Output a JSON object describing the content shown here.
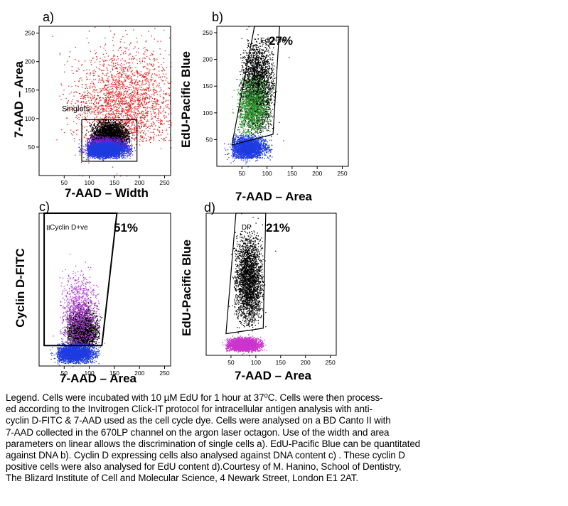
{
  "chart_data": [
    {
      "type": "scatter",
      "panel_label": "a)",
      "xlabel": "7-AAD – Width",
      "ylabel": "7-AAD – Area",
      "xlim": [
        0,
        262
      ],
      "ylim": [
        0,
        262
      ],
      "xticks": [
        50,
        100,
        150,
        200,
        250
      ],
      "yticks": [
        50,
        100,
        150,
        200,
        250
      ],
      "gate": {
        "name": "Singlets",
        "shape": "rectangle",
        "x": [
          85,
          195
        ],
        "y": [
          25,
          98
        ]
      },
      "populations": [
        {
          "color": "#e02020",
          "x_range": [
            40,
            262
          ],
          "y_range": [
            60,
            262
          ],
          "center": [
            170,
            125
          ],
          "density": "high"
        },
        {
          "color": "#000000",
          "x_range": [
            100,
            180
          ],
          "y_range": [
            45,
            100
          ],
          "center": [
            140,
            70
          ],
          "density": "high"
        },
        {
          "color": "#7b1fd6",
          "x_range": [
            95,
            185
          ],
          "y_range": [
            35,
            70
          ],
          "center": [
            130,
            50
          ],
          "density": "high"
        },
        {
          "color": "#1d3be0",
          "x_range": [
            95,
            185
          ],
          "y_range": [
            30,
            60
          ],
          "center": [
            130,
            45
          ],
          "density": "high"
        }
      ]
    },
    {
      "type": "scatter",
      "panel_label": "b)",
      "xlabel": "7-AAD – Area",
      "ylabel": "EdU-Pacific Blue",
      "xlim": [
        0,
        262
      ],
      "ylim": [
        0,
        262
      ],
      "xticks": [
        50,
        100,
        150,
        200,
        250
      ],
      "yticks": [
        50,
        100,
        150,
        200,
        250
      ],
      "gate": {
        "name": "EdU+ve",
        "percent": "27%",
        "shape": "polygon",
        "points": [
          [
            30,
            40
          ],
          [
            75,
            262
          ],
          [
            125,
            262
          ],
          [
            112,
            60
          ]
        ]
      },
      "populations": [
        {
          "color": "#000000",
          "x_range": [
            45,
            115
          ],
          "y_range": [
            60,
            240
          ],
          "center": [
            80,
            150
          ],
          "density": "high"
        },
        {
          "color": "#2a9d2a",
          "x_range": [
            40,
            110
          ],
          "y_range": [
            55,
            170
          ],
          "center": [
            70,
            110
          ],
          "density": "medium"
        },
        {
          "color": "#1d3be0",
          "x_range": [
            30,
            110
          ],
          "y_range": [
            15,
            60
          ],
          "center": [
            60,
            35
          ],
          "density": "high"
        }
      ]
    },
    {
      "type": "scatter",
      "panel_label": "c)",
      "xlabel": "7-AAD – Area",
      "ylabel": "Cyclin D-FITC",
      "xlim": [
        0,
        262
      ],
      "ylim": [
        0,
        262
      ],
      "xticks": [
        50,
        100,
        150,
        200,
        250
      ],
      "yticks": [],
      "gate": {
        "name": "Cyclin D+ve",
        "percent": "51%",
        "shape": "polygon",
        "points": [
          [
            10,
            262
          ],
          [
            10,
            35
          ],
          [
            125,
            35
          ],
          [
            155,
            262
          ]
        ]
      },
      "populations": [
        {
          "color": "#000000",
          "x_range": [
            55,
            120
          ],
          "y_range": [
            35,
            110
          ],
          "center": [
            85,
            60
          ],
          "density": "high"
        },
        {
          "color": "#b040d8",
          "x_range": [
            40,
            120
          ],
          "y_range": [
            35,
            170
          ],
          "center": [
            80,
            90
          ],
          "density": "medium"
        },
        {
          "color": "#1d3be0",
          "x_range": [
            35,
            120
          ],
          "y_range": [
            5,
            40
          ],
          "center": [
            70,
            22
          ],
          "density": "high"
        }
      ]
    },
    {
      "type": "scatter",
      "panel_label": "d)",
      "xlabel": "7-AAD – Area",
      "ylabel": "EdU-Pacific Blue",
      "xlim": [
        0,
        262
      ],
      "ylim": [
        0,
        262
      ],
      "xticks": [
        50,
        100,
        150,
        200,
        250
      ],
      "yticks": [],
      "gate": {
        "name": "DP",
        "percent": "21%",
        "shape": "polygon",
        "points": [
          [
            40,
            40
          ],
          [
            60,
            262
          ],
          [
            120,
            262
          ],
          [
            115,
            50
          ]
        ]
      },
      "populations": [
        {
          "color": "#000000",
          "x_range": [
            55,
            115
          ],
          "y_range": [
            55,
            230
          ],
          "center": [
            85,
            140
          ],
          "density": "high"
        },
        {
          "color": "#cc33cc",
          "x_range": [
            40,
            115
          ],
          "y_range": [
            8,
            35
          ],
          "center": [
            75,
            20
          ],
          "density": "high"
        }
      ]
    }
  ],
  "legend_lines": [
    "Legend. Cells were incubated with 10 µM EdU for 1 hour at 37⁰C. Cells were then process-",
    "ed according to the Invitrogen Click-IT protocol for intracellular antigen analysis with anti-",
    "cyclin D-FITC & 7-AAD used as the cell cycle dye. Cells were analysed on a BD Canto II with",
    "7-AAD collected in the 670LP channel on the argon laser octagon. Use of the width and area",
    "parameters on linear allows the discrimination  of single cells a). EdU-Pacific Blue can be quantitated",
    "against DNA b).  Cyclin D  expressing cells also analysed against DNA content c) .  These cyclin D",
    "positive cells were also analysed for EdU content d).Courtesy of M. Hanino, School of Dentistry,",
    "The Blizard Institute of Cell and Molecular Science, 4 Newark Street, London E1 2AT."
  ]
}
